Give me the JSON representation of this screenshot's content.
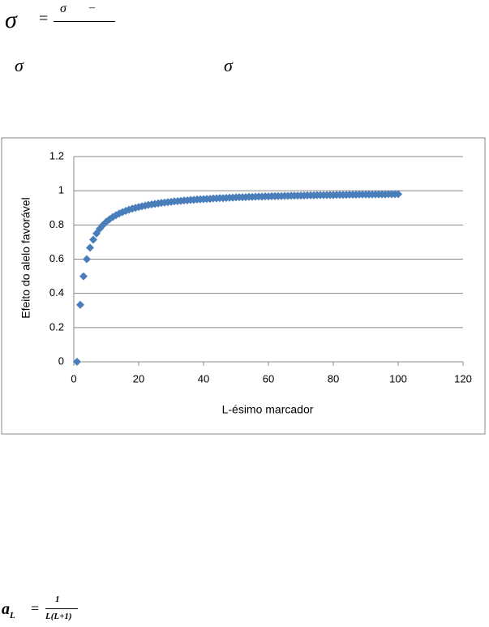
{
  "formula_top": {
    "lhs": "σ",
    "equals": "=",
    "numerator_symbol": "σ",
    "numerator_operator": "–"
  },
  "symbols_line": [
    "σ",
    "σ"
  ],
  "chart_data": {
    "type": "scatter",
    "x_label": "L-ésimo marcador",
    "y_label": "Efeito do alelo favorável",
    "series": [
      {
        "name": "Efeito",
        "color": "#4a7ebb",
        "x": [
          1,
          2,
          3,
          4,
          5,
          6,
          7,
          8,
          9,
          10,
          11,
          12,
          13,
          14,
          15,
          16,
          17,
          18,
          19,
          20,
          21,
          22,
          23,
          24,
          25,
          26,
          27,
          28,
          29,
          30,
          31,
          32,
          33,
          34,
          35,
          36,
          37,
          38,
          39,
          40,
          41,
          42,
          43,
          44,
          45,
          46,
          47,
          48,
          49,
          50,
          51,
          52,
          53,
          54,
          55,
          56,
          57,
          58,
          59,
          60,
          61,
          62,
          63,
          64,
          65,
          66,
          67,
          68,
          69,
          70,
          71,
          72,
          73,
          74,
          75,
          76,
          77,
          78,
          79,
          80,
          81,
          82,
          83,
          84,
          85,
          86,
          87,
          88,
          89,
          90,
          91,
          92,
          93,
          94,
          95,
          96,
          97,
          98,
          99,
          100
        ],
        "values": [
          0,
          0.333,
          0.5,
          0.6,
          0.667,
          0.714,
          0.75,
          0.778,
          0.8,
          0.818,
          0.833,
          0.846,
          0.857,
          0.867,
          0.875,
          0.882,
          0.889,
          0.895,
          0.9,
          0.905,
          0.909,
          0.913,
          0.917,
          0.92,
          0.923,
          0.926,
          0.929,
          0.931,
          0.933,
          0.935,
          0.938,
          0.939,
          0.941,
          0.943,
          0.944,
          0.946,
          0.947,
          0.949,
          0.95,
          0.951,
          0.952,
          0.953,
          0.955,
          0.956,
          0.957,
          0.957,
          0.958,
          0.959,
          0.96,
          0.961,
          0.962,
          0.962,
          0.963,
          0.964,
          0.964,
          0.965,
          0.966,
          0.966,
          0.967,
          0.967,
          0.968,
          0.968,
          0.969,
          0.969,
          0.97,
          0.97,
          0.971,
          0.971,
          0.971,
          0.972,
          0.972,
          0.973,
          0.973,
          0.973,
          0.974,
          0.974,
          0.974,
          0.975,
          0.975,
          0.975,
          0.976,
          0.976,
          0.976,
          0.976,
          0.977,
          0.977,
          0.977,
          0.978,
          0.978,
          0.978,
          0.978,
          0.978,
          0.979,
          0.979,
          0.979,
          0.979,
          0.98,
          0.98,
          0.98,
          0.98
        ]
      }
    ],
    "xlim": [
      0,
      120
    ],
    "xticks": [
      0,
      20,
      40,
      60,
      80,
      100,
      120
    ],
    "ylim": [
      0,
      1.2
    ],
    "yticks": [
      0,
      0.2,
      0.4,
      0.6,
      0.8,
      1,
      1.2
    ],
    "grid": true
  },
  "formula_bottom": {
    "symbol": "a",
    "subscript": "L",
    "equals": "=",
    "numerator": "1",
    "denominator": "L(L+1)"
  }
}
